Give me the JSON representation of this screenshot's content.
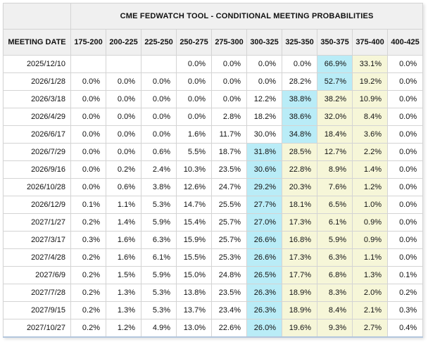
{
  "colors": {
    "highlight_max": "#b9ecf7",
    "highlight_path": "#f6f6d8",
    "header_bg": "#f0f0f0",
    "border": "#d4d4d4",
    "outer_border": "#c9c9c9",
    "bottom_border": "#b3c6dd",
    "text": "#111111"
  },
  "chart_data": {
    "type": "table",
    "title": "CME FEDWATCH TOOL - CONDITIONAL MEETING PROBABILITIES",
    "date_column_header": "MEETING DATE",
    "columns": [
      "MEETING DATE",
      "175-200",
      "200-225",
      "225-250",
      "250-275",
      "275-300",
      "300-325",
      "325-350",
      "350-375",
      "375-400",
      "400-425"
    ],
    "highlight_legend": {
      "blue": "#b9ecf7",
      "yellow": "#f6f6d8"
    },
    "rows": [
      {
        "date": "2025/12/10",
        "values": [
          "",
          "",
          "",
          "0.0%",
          "0.0%",
          "0.0%",
          "0.0%",
          "66.9%",
          "33.1%",
          "0.0%"
        ],
        "highlights": [
          "",
          "",
          "",
          "",
          "",
          "",
          "",
          "blue",
          "yellow",
          ""
        ]
      },
      {
        "date": "2026/1/28",
        "values": [
          "0.0%",
          "0.0%",
          "0.0%",
          "0.0%",
          "0.0%",
          "0.0%",
          "28.2%",
          "52.7%",
          "19.2%",
          "0.0%"
        ],
        "highlights": [
          "",
          "",
          "",
          "",
          "",
          "",
          "",
          "blue",
          "yellow",
          ""
        ]
      },
      {
        "date": "2026/3/18",
        "values": [
          "0.0%",
          "0.0%",
          "0.0%",
          "0.0%",
          "0.0%",
          "12.2%",
          "38.8%",
          "38.2%",
          "10.9%",
          "0.0%"
        ],
        "highlights": [
          "",
          "",
          "",
          "",
          "",
          "",
          "blue",
          "yellow",
          "yellow",
          ""
        ]
      },
      {
        "date": "2026/4/29",
        "values": [
          "0.0%",
          "0.0%",
          "0.0%",
          "0.0%",
          "2.8%",
          "18.2%",
          "38.6%",
          "32.0%",
          "8.4%",
          "0.0%"
        ],
        "highlights": [
          "",
          "",
          "",
          "",
          "",
          "",
          "blue",
          "yellow",
          "yellow",
          ""
        ]
      },
      {
        "date": "2026/6/17",
        "values": [
          "0.0%",
          "0.0%",
          "0.0%",
          "1.6%",
          "11.7%",
          "30.0%",
          "34.8%",
          "18.4%",
          "3.6%",
          "0.0%"
        ],
        "highlights": [
          "",
          "",
          "",
          "",
          "",
          "",
          "blue",
          "yellow",
          "yellow",
          ""
        ]
      },
      {
        "date": "2026/7/29",
        "values": [
          "0.0%",
          "0.0%",
          "0.6%",
          "5.5%",
          "18.7%",
          "31.8%",
          "28.5%",
          "12.7%",
          "2.2%",
          "0.0%"
        ],
        "highlights": [
          "",
          "",
          "",
          "",
          "",
          "blue",
          "yellow",
          "yellow",
          "yellow",
          ""
        ]
      },
      {
        "date": "2026/9/16",
        "values": [
          "0.0%",
          "0.2%",
          "2.4%",
          "10.3%",
          "23.5%",
          "30.6%",
          "22.8%",
          "8.9%",
          "1.4%",
          "0.0%"
        ],
        "highlights": [
          "",
          "",
          "",
          "",
          "",
          "blue",
          "yellow",
          "yellow",
          "yellow",
          ""
        ]
      },
      {
        "date": "2026/10/28",
        "values": [
          "0.0%",
          "0.6%",
          "3.8%",
          "12.6%",
          "24.7%",
          "29.2%",
          "20.3%",
          "7.6%",
          "1.2%",
          "0.0%"
        ],
        "highlights": [
          "",
          "",
          "",
          "",
          "",
          "blue",
          "yellow",
          "yellow",
          "yellow",
          ""
        ]
      },
      {
        "date": "2026/12/9",
        "values": [
          "0.1%",
          "1.1%",
          "5.3%",
          "14.7%",
          "25.5%",
          "27.7%",
          "18.1%",
          "6.5%",
          "1.0%",
          "0.0%"
        ],
        "highlights": [
          "",
          "",
          "",
          "",
          "",
          "blue",
          "yellow",
          "yellow",
          "yellow",
          ""
        ]
      },
      {
        "date": "2027/1/27",
        "values": [
          "0.2%",
          "1.4%",
          "5.9%",
          "15.4%",
          "25.7%",
          "27.0%",
          "17.3%",
          "6.1%",
          "0.9%",
          "0.0%"
        ],
        "highlights": [
          "",
          "",
          "",
          "",
          "",
          "blue",
          "yellow",
          "yellow",
          "yellow",
          ""
        ]
      },
      {
        "date": "2027/3/17",
        "values": [
          "0.3%",
          "1.6%",
          "6.3%",
          "15.9%",
          "25.7%",
          "26.6%",
          "16.8%",
          "5.9%",
          "0.9%",
          "0.0%"
        ],
        "highlights": [
          "",
          "",
          "",
          "",
          "",
          "blue",
          "yellow",
          "yellow",
          "yellow",
          ""
        ]
      },
      {
        "date": "2027/4/28",
        "values": [
          "0.2%",
          "1.6%",
          "6.1%",
          "15.5%",
          "25.3%",
          "26.6%",
          "17.3%",
          "6.3%",
          "1.1%",
          "0.0%"
        ],
        "highlights": [
          "",
          "",
          "",
          "",
          "",
          "blue",
          "yellow",
          "yellow",
          "yellow",
          ""
        ]
      },
      {
        "date": "2027/6/9",
        "values": [
          "0.2%",
          "1.5%",
          "5.9%",
          "15.0%",
          "24.8%",
          "26.5%",
          "17.7%",
          "6.8%",
          "1.3%",
          "0.1%"
        ],
        "highlights": [
          "",
          "",
          "",
          "",
          "",
          "blue",
          "yellow",
          "yellow",
          "yellow",
          ""
        ]
      },
      {
        "date": "2027/7/28",
        "values": [
          "0.2%",
          "1.3%",
          "5.3%",
          "13.8%",
          "23.5%",
          "26.3%",
          "18.9%",
          "8.3%",
          "2.0%",
          "0.2%"
        ],
        "highlights": [
          "",
          "",
          "",
          "",
          "",
          "blue",
          "yellow",
          "yellow",
          "yellow",
          ""
        ]
      },
      {
        "date": "2027/9/15",
        "values": [
          "0.2%",
          "1.3%",
          "5.3%",
          "13.7%",
          "23.4%",
          "26.3%",
          "18.9%",
          "8.4%",
          "2.1%",
          "0.3%"
        ],
        "highlights": [
          "",
          "",
          "",
          "",
          "",
          "blue",
          "yellow",
          "yellow",
          "yellow",
          ""
        ]
      },
      {
        "date": "2027/10/27",
        "values": [
          "0.2%",
          "1.2%",
          "4.9%",
          "13.0%",
          "22.6%",
          "26.0%",
          "19.6%",
          "9.3%",
          "2.7%",
          "0.4%"
        ],
        "highlights": [
          "",
          "",
          "",
          "",
          "",
          "blue",
          "yellow",
          "yellow",
          "yellow",
          ""
        ]
      }
    ]
  }
}
